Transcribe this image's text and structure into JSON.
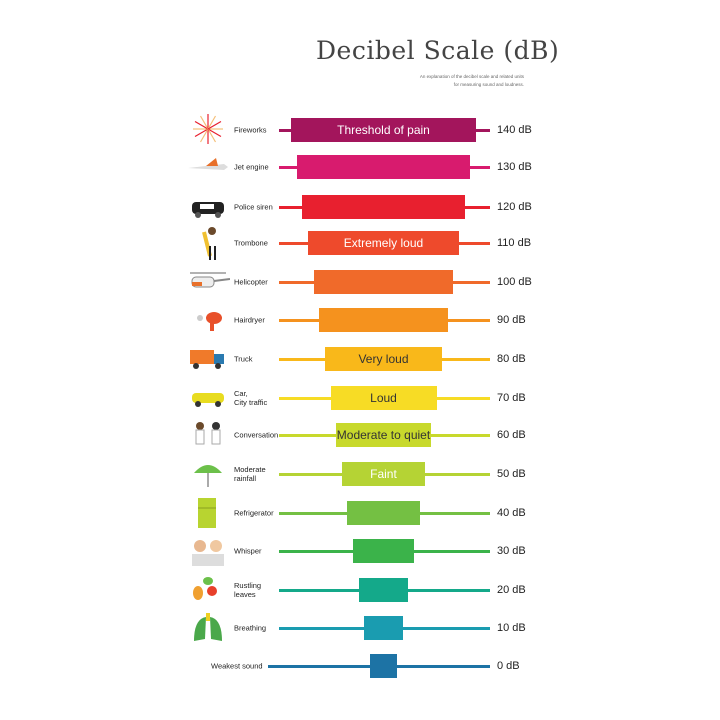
{
  "header": {
    "title": "Decibel Scale (dB)",
    "subtitle_line1": "An explanation of the decibel scale and related units",
    "subtitle_line2": "for measuring sound and loudness."
  },
  "rows": [
    {
      "source": "Fireworks",
      "category": "Threshold of pain",
      "db_label": "140 dB",
      "level_db": 140,
      "color": "#a3155c",
      "icon": "fireworks-icon"
    },
    {
      "source": "Jet engine",
      "category": "",
      "db_label": "130 dB",
      "level_db": 130,
      "color": "#d81b6e",
      "icon": "jet-plane-icon"
    },
    {
      "source": "Police siren",
      "category": "",
      "db_label": "120 dB",
      "level_db": 120,
      "color": "#e8202f",
      "icon": "police-car-icon"
    },
    {
      "source": "Trombone",
      "category": "Extremely loud",
      "db_label": "110 dB",
      "level_db": 110,
      "color": "#ee4a2c",
      "icon": "trombone-player-icon"
    },
    {
      "source": "Helicopter",
      "category": "",
      "db_label": "100 dB",
      "level_db": 100,
      "color": "#f06a2a",
      "icon": "helicopter-icon"
    },
    {
      "source": "Hairdryer",
      "category": "",
      "db_label": "90 dB",
      "level_db": 90,
      "color": "#f5921e",
      "icon": "hairdryer-icon"
    },
    {
      "source": "Truck",
      "category": "Very loud",
      "db_label": "80 dB",
      "level_db": 80,
      "color": "#f9b81a",
      "icon": "truck-icon"
    },
    {
      "source": "Car,\nCity traffic",
      "category": "Loud",
      "db_label": "70 dB",
      "level_db": 70,
      "color": "#f7dc25",
      "icon": "car-icon"
    },
    {
      "source": "Conversation",
      "category": "Moderate to quiet",
      "db_label": "60 dB",
      "level_db": 60,
      "color": "#c8d92c",
      "icon": "conversation-icon"
    },
    {
      "source": "Moderate\nrainfall",
      "category": "Faint",
      "db_label": "50 dB",
      "level_db": 50,
      "color": "#b5d334",
      "icon": "umbrella-rain-icon"
    },
    {
      "source": "Refrigerator",
      "category": "",
      "db_label": "40 dB",
      "level_db": 40,
      "color": "#74c043",
      "icon": "refrigerator-icon"
    },
    {
      "source": "Whisper",
      "category": "",
      "db_label": "30 dB",
      "level_db": 30,
      "color": "#3bb34a",
      "icon": "whisper-icon"
    },
    {
      "source": "Rustling\nleaves",
      "category": "",
      "db_label": "20 dB",
      "level_db": 20,
      "color": "#14a98a",
      "icon": "leaves-icon"
    },
    {
      "source": "Breathing",
      "category": "",
      "db_label": "10 dB",
      "level_db": 10,
      "color": "#1a9cb0",
      "icon": "lungs-icon"
    },
    {
      "source": "Weakest sound",
      "category": "",
      "db_label": "0 dB",
      "level_db": 0,
      "color": "#1d73a5",
      "icon": ""
    }
  ]
}
